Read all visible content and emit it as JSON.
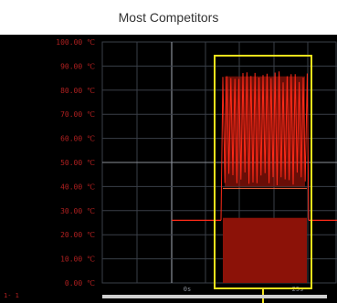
{
  "caption": "Most Competitors",
  "colors": {
    "background": "#000000",
    "grid": "#3a3f48",
    "axis_label": "#b02020",
    "trace": "#ff2a18",
    "highlight": "#f2e21c",
    "scrollbar": "#d0d0d0"
  },
  "chart_data": {
    "type": "line",
    "title": "",
    "xlabel": "",
    "ylabel": "",
    "y_unit": "°C",
    "ylim": [
      0,
      100
    ],
    "y_ticks": [
      "100.00 ℃",
      "90.00 ℃",
      "80.00 ℃",
      "70.00 ℃",
      "60.00 ℃",
      "50.00 ℃",
      "40.00 ℃",
      "30.00 ℃",
      "20.00 ℃",
      "10.00 ℃",
      "0.00 ℃"
    ],
    "x_ticks": [
      "0s",
      "25s"
    ],
    "corner_label": "1- 1",
    "grid": true,
    "series": [
      {
        "baseline_before": 26,
        "baseline_after": 26,
        "oscillation_min": 40,
        "oscillation_max": 88,
        "oscillation_fill": 27
      }
    ],
    "highlight_box": "around the burst"
  }
}
